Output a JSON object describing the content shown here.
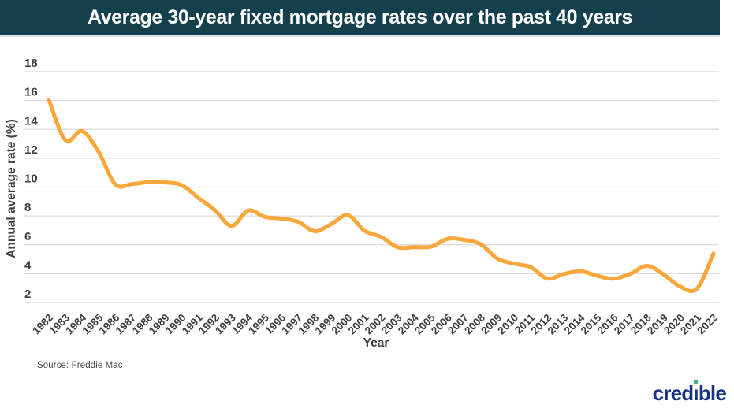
{
  "header": {
    "title": "Average 30-year fixed mortgage rates over the past 40 years",
    "background": "#14404D",
    "text_color": "#FFFFFF"
  },
  "chart_data": {
    "type": "line",
    "smooth": true,
    "x": [
      1982,
      1983,
      1984,
      1985,
      1986,
      1987,
      1988,
      1989,
      1990,
      1991,
      1992,
      1993,
      1994,
      1995,
      1996,
      1997,
      1998,
      1999,
      2000,
      2001,
      2002,
      2003,
      2004,
      2005,
      2006,
      2007,
      2008,
      2009,
      2010,
      2011,
      2012,
      2013,
      2014,
      2015,
      2016,
      2017,
      2018,
      2019,
      2020,
      2021,
      2022
    ],
    "values": [
      16.04,
      13.24,
      13.88,
      12.43,
      10.19,
      10.21,
      10.34,
      10.32,
      10.13,
      9.25,
      8.39,
      7.31,
      8.38,
      7.93,
      7.81,
      7.6,
      6.94,
      7.44,
      8.05,
      6.97,
      6.54,
      5.83,
      5.84,
      5.87,
      6.41,
      6.34,
      6.03,
      5.04,
      4.69,
      4.45,
      3.66,
      3.98,
      4.17,
      3.85,
      3.65,
      3.99,
      4.54,
      3.94,
      3.1,
      2.96,
      5.4
    ],
    "xlabel": "Year",
    "ylabel": "Annual average rate (%)",
    "ylim": [
      2,
      18
    ],
    "yticks": [
      2,
      4,
      6,
      8,
      10,
      12,
      14,
      16,
      18
    ],
    "grid": "horizontal-only",
    "legend": "none",
    "line_color": "#F7A73C",
    "grid_color": "#D9D9D9",
    "tick_color": "#3F3F3F"
  },
  "footer": {
    "source_prefix": "Source:",
    "source_link": "Freddie Mac",
    "logo_text": "credible",
    "logo_color": "#17357E",
    "logo_dot_color": "#3CAE8E"
  }
}
